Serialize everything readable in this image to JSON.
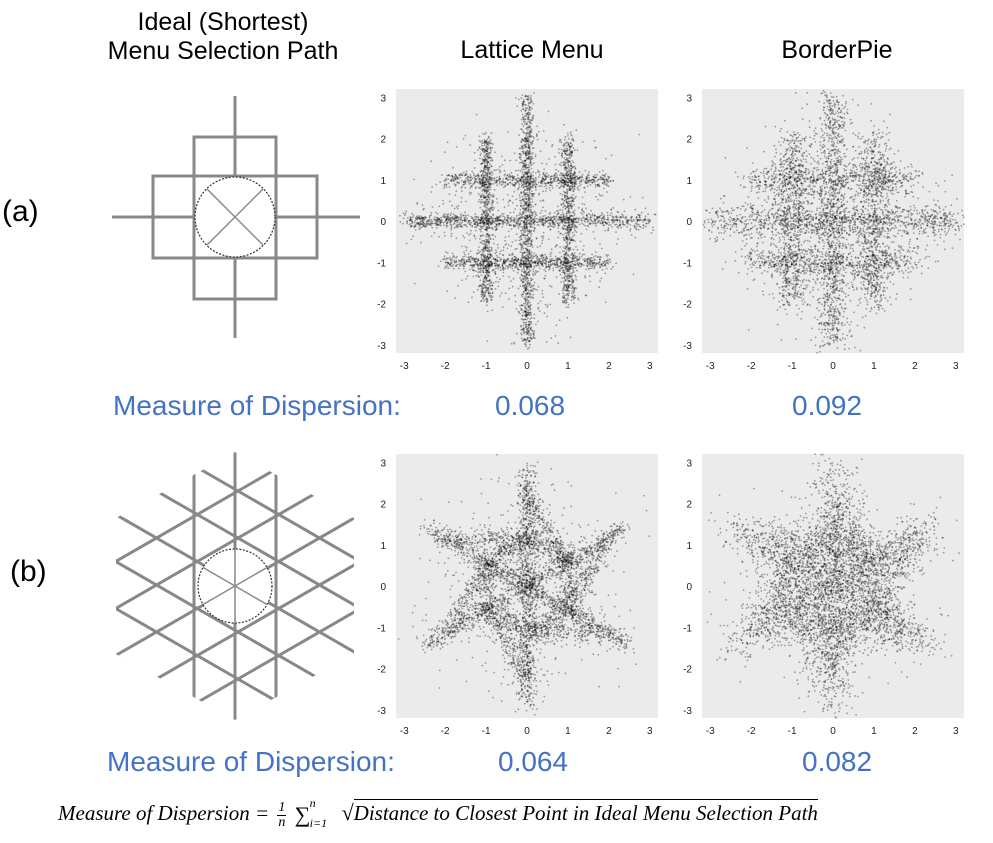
{
  "columns": {
    "ideal": "Ideal (Shortest)\nMenu Selection Path",
    "lattice": "Lattice Menu",
    "borderpie": "BorderPie"
  },
  "rows": [
    {
      "label": "(a)",
      "dispersion_label": "Measure of Dispersion:",
      "lattice_value": "0.068",
      "borderpie_value": "0.092"
    },
    {
      "label": "(b)",
      "dispersion_label": "Measure of Dispersion:",
      "lattice_value": "0.064",
      "borderpie_value": "0.082"
    }
  ],
  "formula": {
    "lhs": "Measure of Dispersion =",
    "numerator": "1",
    "denominator": "n",
    "sum_upper": "n",
    "sum_lower": "i=1",
    "radicand": "Distance to Closest Point in Ideal Menu Selection Path"
  },
  "chart_data": [
    {
      "type": "scatter",
      "name": "Lattice Menu (a)",
      "layout": "square",
      "xlim": [
        -3.2,
        3.2
      ],
      "ylim": [
        -3.2,
        3.2
      ],
      "xticks": [
        "-3",
        "-2",
        "-1",
        "0",
        "1",
        "2",
        "3"
      ],
      "yticks": [
        "3",
        "2",
        "1",
        "0",
        "-1",
        "-2",
        "-3"
      ],
      "spread": 0.09,
      "background": "#ebebeb",
      "point_color": "#000000"
    },
    {
      "type": "scatter",
      "name": "BorderPie (a)",
      "layout": "square",
      "xlim": [
        -3.2,
        3.2
      ],
      "ylim": [
        -3.2,
        3.2
      ],
      "xticks": [
        "-3",
        "-2",
        "-1",
        "0",
        "1",
        "2",
        "3"
      ],
      "yticks": [
        "3",
        "2",
        "1",
        "0",
        "-1",
        "-2",
        "-3"
      ],
      "spread": 0.2,
      "background": "#ebebeb",
      "point_color": "#000000"
    },
    {
      "type": "scatter",
      "name": "Lattice Menu (b)",
      "layout": "hex",
      "xlim": [
        -3.2,
        3.2
      ],
      "ylim": [
        -3.2,
        3.2
      ],
      "xticks": [
        "-3",
        "-2",
        "-1",
        "0",
        "1",
        "2",
        "3"
      ],
      "yticks": [
        "3",
        "2",
        "1",
        "0",
        "-1",
        "-2",
        "-3"
      ],
      "spread": 0.12,
      "background": "#ebebeb",
      "point_color": "#000000"
    },
    {
      "type": "scatter",
      "name": "BorderPie (b)",
      "layout": "hex",
      "xlim": [
        -3.2,
        3.2
      ],
      "ylim": [
        -3.2,
        3.2
      ],
      "xticks": [
        "-3",
        "-2",
        "-1",
        "0",
        "1",
        "2",
        "3"
      ],
      "yticks": [
        "3",
        "2",
        "1",
        "0",
        "-1",
        "-2",
        "-3"
      ],
      "spread": 0.26,
      "background": "#ebebeb",
      "point_color": "#000000"
    }
  ]
}
